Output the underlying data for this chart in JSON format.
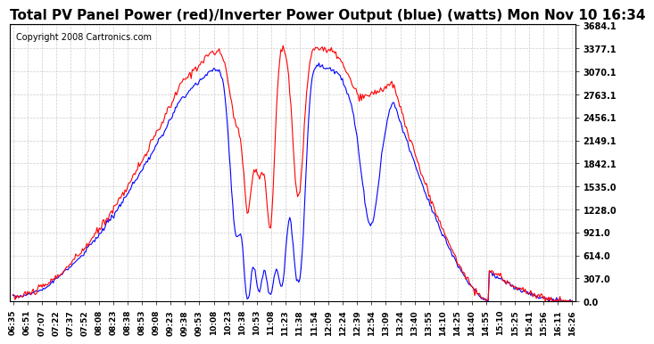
{
  "title": "Total PV Panel Power (red)/Inverter Power Output (blue) (watts) Mon Nov 10 16:34",
  "copyright": "Copyright 2008 Cartronics.com",
  "yticks": [
    0.0,
    307.0,
    614.0,
    921.0,
    1228.0,
    1535.0,
    1842.1,
    2149.1,
    2456.1,
    2763.1,
    3070.1,
    3377.1,
    3684.1
  ],
  "ymax": 3684.1,
  "ymin": 0.0,
  "x_labels": [
    "06:35",
    "06:51",
    "07:07",
    "07:22",
    "07:37",
    "07:52",
    "08:08",
    "08:23",
    "08:38",
    "08:53",
    "09:08",
    "09:23",
    "09:38",
    "09:53",
    "10:08",
    "10:23",
    "10:38",
    "10:53",
    "11:08",
    "11:23",
    "11:38",
    "11:54",
    "12:09",
    "12:24",
    "12:39",
    "12:54",
    "13:09",
    "13:24",
    "13:40",
    "13:55",
    "14:10",
    "14:25",
    "14:40",
    "14:55",
    "15:10",
    "15:25",
    "15:41",
    "15:56",
    "16:11",
    "16:26"
  ],
  "bg_color": "#ffffff",
  "grid_color": "#cccccc",
  "red_color": "#ff0000",
  "blue_color": "#0000ff",
  "title_fontsize": 11,
  "copyright_fontsize": 7
}
